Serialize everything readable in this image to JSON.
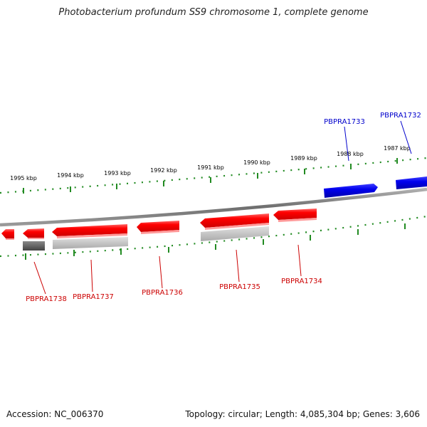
{
  "title": "Photobacterium profundum SS9 chromosome 1, complete genome",
  "footer": {
    "accession": "Accession: NC_006370",
    "summary": "Topology: circular; Length: 4,085,304 bp; Genes: 3,606"
  },
  "kbp_labels": [
    "1995 kbp",
    "1994 kbp",
    "1993 kbp",
    "1992 kbp",
    "1991 kbp",
    "1990 kbp",
    "1989 kbp",
    "1988 kbp",
    "1987 kbp"
  ],
  "genes": [
    {
      "name": "PBPRA1738",
      "strand": "reverse",
      "color": "#cc0000"
    },
    {
      "name": "PBPRA1737",
      "strand": "reverse",
      "color": "#cc0000"
    },
    {
      "name": "PBPRA1736",
      "strand": "reverse",
      "color": "#cc0000"
    },
    {
      "name": "PBPRA1735",
      "strand": "reverse",
      "color": "#cc0000"
    },
    {
      "name": "PBPRA1734",
      "strand": "reverse",
      "color": "#cc0000"
    },
    {
      "name": "PBPRA1733",
      "strand": "forward",
      "color": "#0000cc"
    },
    {
      "name": "PBPRA1732",
      "strand": "forward",
      "color": "#0000cc"
    }
  ],
  "colors": {
    "reverse_gene": "#ff0000",
    "forward_gene": "#0000ee",
    "tick": "#228b22",
    "backbone": "#7a7a7a"
  }
}
